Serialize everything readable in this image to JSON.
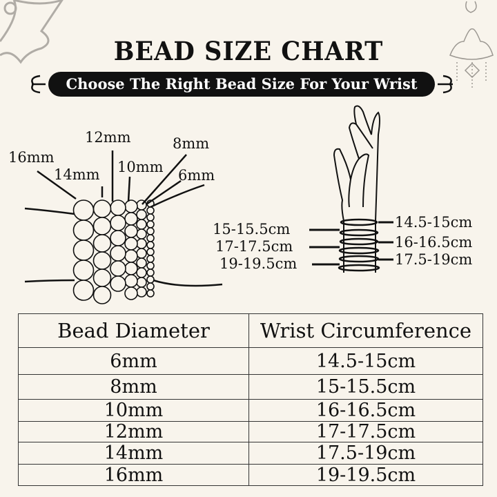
{
  "title": "BEAD SIZE CHART",
  "subtitle": "Choose The Right Bead Size For Your Wrist",
  "bead_labels": [
    "16mm",
    "14mm",
    "12mm",
    "10mm",
    "8mm",
    "6mm"
  ],
  "wrist_labels_right": [
    "14.5-15cm",
    "16-16.5cm",
    "17.5-19cm"
  ],
  "wrist_labels_left": [
    "15-15.5cm",
    "17-17.5cm",
    "19-19.5cm"
  ],
  "table": {
    "headers": [
      "Bead Diameter",
      "Wrist Circumference"
    ],
    "rows": [
      [
        "6mm",
        "14.5-15cm"
      ],
      [
        "8mm",
        "15-15.5cm"
      ],
      [
        "10mm",
        "16-16.5cm"
      ],
      [
        "12mm",
        "17-17.5cm"
      ],
      [
        "14mm",
        "17.5-19cm"
      ],
      [
        "16mm",
        "19-19.5cm"
      ]
    ]
  },
  "colors": {
    "background": "#f8f4ec",
    "ink": "#111111",
    "ornament": "#b0aca6"
  }
}
